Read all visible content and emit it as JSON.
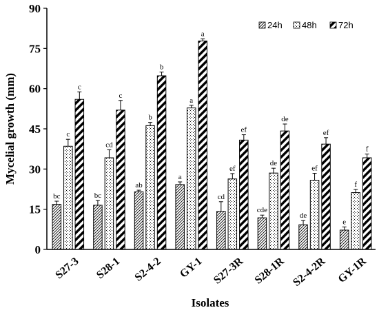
{
  "chart_data": {
    "type": "bar",
    "title": "",
    "xlabel": "Isolates",
    "ylabel": "Mycelial growth (mm)",
    "ylim": [
      0,
      90
    ],
    "yticks": [
      0,
      15,
      30,
      45,
      60,
      75,
      90
    ],
    "legend_position": "top-right",
    "categories": [
      "S27-3",
      "S28-1",
      "S2-4-2",
      "GY-1",
      "S27-3R",
      "S28-1R",
      "S2-4-2R",
      "GY-1R"
    ],
    "series": [
      {
        "name": "24h",
        "pattern": "diagonal-thin",
        "values": [
          16.8,
          16.5,
          21.5,
          24.2,
          14.2,
          11.8,
          9.2,
          7.2
        ],
        "errors": [
          1.2,
          1.8,
          0.6,
          1.0,
          3.6,
          1.0,
          1.6,
          1.2
        ],
        "labels": [
          "bc",
          "bc",
          "ab",
          "a",
          "cd",
          "cde",
          "de",
          "e"
        ]
      },
      {
        "name": "48h",
        "pattern": "dots",
        "values": [
          38.5,
          34.2,
          46.2,
          52.8,
          26.3,
          28.5,
          25.8,
          21.2
        ],
        "errors": [
          2.6,
          3.0,
          1.2,
          1.0,
          2.0,
          1.8,
          2.6,
          1.2
        ],
        "labels": [
          "c",
          "cd",
          "b",
          "a",
          "ef",
          "de",
          "ef",
          "f"
        ]
      },
      {
        "name": "72h",
        "pattern": "diagonal-thick",
        "values": [
          56.0,
          52.0,
          64.8,
          77.8,
          40.8,
          44.2,
          39.3,
          34.2
        ],
        "errors": [
          2.8,
          3.6,
          1.4,
          0.8,
          2.0,
          2.6,
          2.4,
          1.4
        ],
        "labels": [
          "c",
          "c",
          "b",
          "a",
          "ef",
          "de",
          "ef",
          "f"
        ]
      }
    ]
  }
}
